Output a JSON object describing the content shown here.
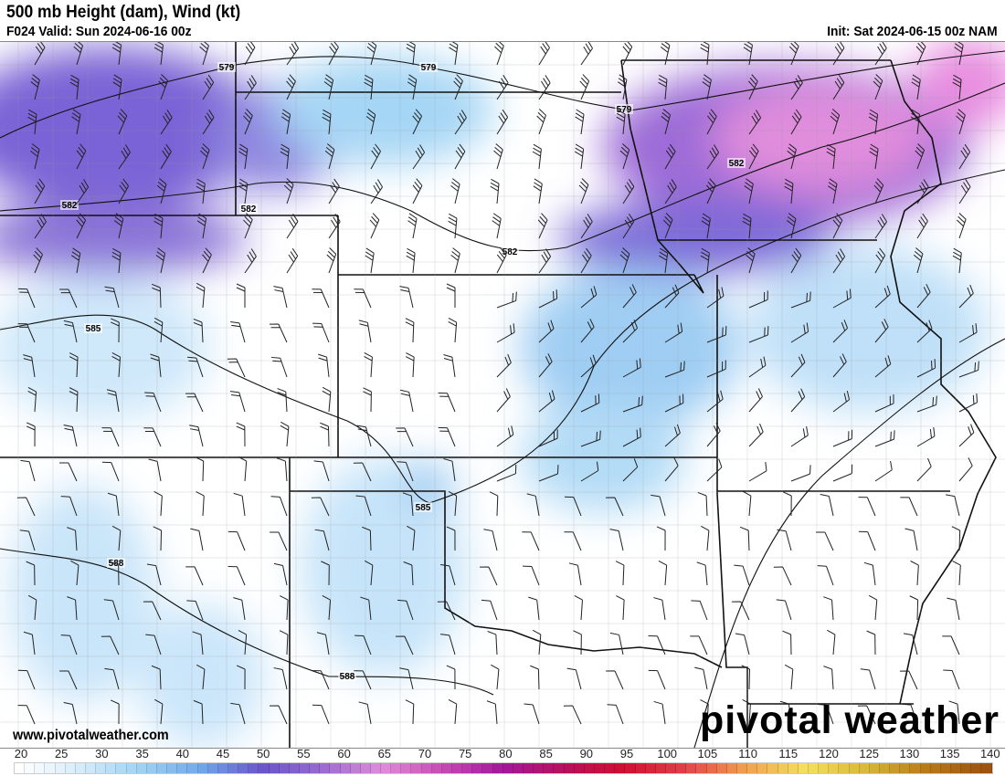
{
  "header": {
    "title": "500 mb Height (dam), Wind (kt)",
    "valid": "F024 Valid: Sun 2024-06-16 00z",
    "init": "Init: Sat 2024-06-15 00z NAM"
  },
  "watermark": "www.pivotalweather.com",
  "logo": "pivotal weather",
  "colorbar": {
    "labels": [
      "20",
      "25",
      "30",
      "35",
      "40",
      "45",
      "50",
      "55",
      "60",
      "65",
      "70",
      "75",
      "80",
      "85",
      "90",
      "95",
      "100",
      "105",
      "110",
      "115",
      "120",
      "125",
      "130",
      "135",
      "140"
    ],
    "stops": [
      "#ffffff",
      "#d6ecfb",
      "#9fd3f5",
      "#6fa9e8",
      "#6a55c9",
      "#9a6ad0",
      "#e08ddc",
      "#c64cb6",
      "#a3199a",
      "#b8105e",
      "#d10e30",
      "#e2404a",
      "#f0a050",
      "#f5e060",
      "#d9b83a",
      "#b87a1a",
      "#9c5410"
    ]
  },
  "contours": {
    "labels": [
      "579",
      "579",
      "579",
      "582",
      "582",
      "582",
      "582",
      "585",
      "585",
      "588",
      "588"
    ]
  }
}
